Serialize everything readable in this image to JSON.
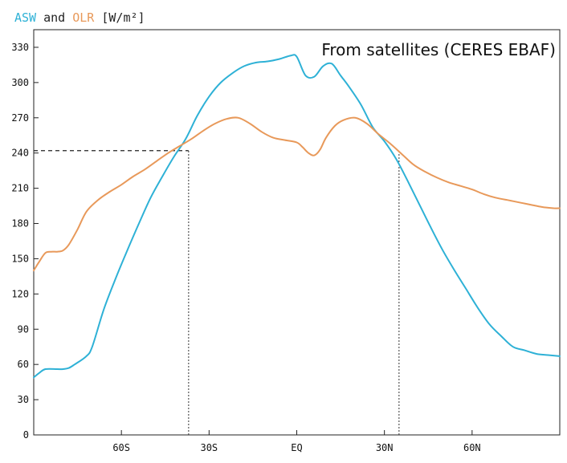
{
  "chart_data": {
    "type": "line",
    "title_parts": [
      {
        "text": "ASW",
        "color": "#2eb1d6"
      },
      {
        "text": " and ",
        "color": "#222222"
      },
      {
        "text": "OLR",
        "color": "#e8995a"
      },
      {
        "text": " [W/m²]",
        "color": "#222222"
      }
    ],
    "annotation": "From satellites (CERES EBAF)",
    "xlim": [
      -90,
      90
    ],
    "ylim": [
      0,
      345
    ],
    "x_ticks": [
      {
        "value": -60,
        "label": "60S"
      },
      {
        "value": -30,
        "label": "30S"
      },
      {
        "value": 0,
        "label": "EQ"
      },
      {
        "value": 30,
        "label": "30N"
      },
      {
        "value": 60,
        "label": "60N"
      }
    ],
    "y_ticks": [
      0,
      30,
      60,
      90,
      120,
      150,
      180,
      210,
      240,
      270,
      300,
      330
    ],
    "grid": false,
    "reference_lines": {
      "horizontal": {
        "y": 242,
        "x_from": -90,
        "x_to": -37,
        "style": "dashed"
      },
      "vertical": [
        {
          "x": -37,
          "y_from": 0,
          "y_to": 242,
          "style": "dotted"
        },
        {
          "x": 35,
          "y_from": 0,
          "y_to": 242,
          "style": "dotted"
        }
      ]
    },
    "series": [
      {
        "name": "ASW",
        "color": "#2eb1d6",
        "x": [
          -90,
          -88,
          -86,
          -82,
          -80,
          -78,
          -76,
          -72,
          -70,
          -66,
          -62,
          -58,
          -54,
          -50,
          -46,
          -42,
          -38,
          -34,
          -30,
          -26,
          -22,
          -18,
          -14,
          -10,
          -6,
          -2,
          0,
          3,
          6,
          9,
          12,
          15,
          18,
          22,
          26,
          30,
          34,
          38,
          42,
          46,
          50,
          54,
          58,
          62,
          66,
          70,
          74,
          78,
          82,
          86,
          90
        ],
        "y": [
          49,
          53,
          56,
          56,
          56,
          57,
          60,
          67,
          75,
          107,
          133,
          157,
          180,
          202,
          220,
          237,
          252,
          272,
          288,
          300,
          308,
          314,
          317,
          318,
          320,
          323,
          322,
          306,
          305,
          314,
          316,
          306,
          296,
          281,
          262,
          250,
          235,
          216,
          196,
          176,
          157,
          140,
          124,
          108,
          94,
          84,
          75,
          72,
          69,
          68,
          67
        ]
      },
      {
        "name": "OLR",
        "color": "#e8995a",
        "x": [
          -90,
          -88,
          -86,
          -84,
          -82,
          -80,
          -78,
          -75,
          -72,
          -68,
          -64,
          -60,
          -56,
          -52,
          -48,
          -44,
          -40,
          -36,
          -32,
          -28,
          -24,
          -20,
          -16,
          -12,
          -8,
          -4,
          0,
          2,
          4,
          6,
          8,
          10,
          13,
          16,
          20,
          24,
          28,
          32,
          36,
          40,
          44,
          48,
          52,
          56,
          60,
          64,
          68,
          72,
          76,
          80,
          84,
          88,
          90
        ],
        "y": [
          140,
          148,
          155,
          156,
          156,
          157,
          162,
          175,
          190,
          200,
          207,
          213,
          220,
          226,
          233,
          240,
          246,
          252,
          259,
          265,
          269,
          270,
          265,
          258,
          253,
          251,
          249,
          245,
          240,
          238,
          243,
          253,
          263,
          268,
          270,
          265,
          256,
          248,
          239,
          230,
          224,
          219,
          215,
          212,
          209,
          205,
          202,
          200,
          198,
          196,
          194,
          193,
          193
        ]
      }
    ]
  }
}
